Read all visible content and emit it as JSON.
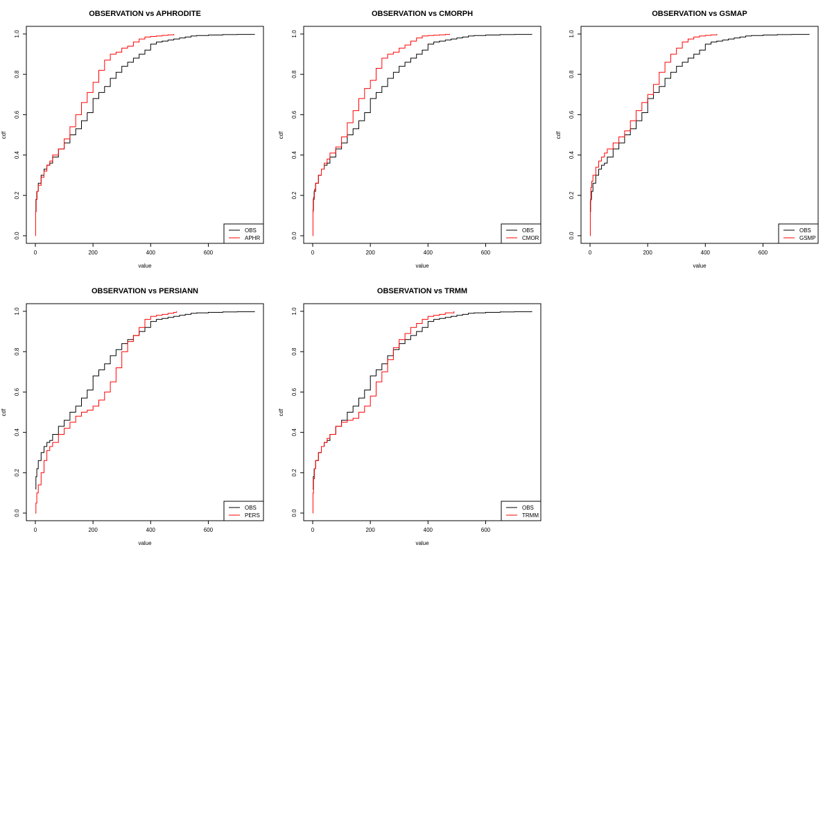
{
  "colors": {
    "obs": "#000000",
    "product": "#ff0000",
    "frame": "#000000",
    "background": "#ffffff"
  },
  "chart_data": [
    {
      "type": "line",
      "title": "OBSERVATION vs APHRODITE",
      "xlabel": "value",
      "ylabel": "cdf",
      "xlim": [
        0,
        760
      ],
      "ylim": [
        0,
        1
      ],
      "xticks": [
        "0",
        "200",
        "400",
        "600"
      ],
      "yticks": [
        "0.0",
        "0.2",
        "0.4",
        "0.6",
        "0.8",
        "1.0"
      ],
      "legend_position": "bottom-right",
      "series": [
        {
          "name": "OBS",
          "color": "#000000",
          "x": [
            0,
            2,
            5,
            10,
            20,
            30,
            40,
            50,
            60,
            80,
            100,
            120,
            140,
            160,
            180,
            200,
            220,
            240,
            260,
            280,
            300,
            320,
            340,
            360,
            380,
            400,
            420,
            440,
            460,
            480,
            500,
            520,
            540,
            560,
            600,
            650,
            700,
            760
          ],
          "y": [
            0.12,
            0.18,
            0.22,
            0.26,
            0.3,
            0.33,
            0.35,
            0.36,
            0.39,
            0.43,
            0.46,
            0.5,
            0.53,
            0.57,
            0.61,
            0.68,
            0.71,
            0.74,
            0.78,
            0.81,
            0.84,
            0.86,
            0.88,
            0.9,
            0.92,
            0.95,
            0.96,
            0.965,
            0.97,
            0.975,
            0.98,
            0.985,
            0.99,
            0.992,
            0.995,
            0.997,
            0.998,
            1.0
          ]
        },
        {
          "name": "APHR",
          "color": "#ff0000",
          "x": [
            0,
            1,
            3,
            6,
            10,
            20,
            30,
            40,
            50,
            60,
            80,
            100,
            120,
            140,
            160,
            180,
            200,
            220,
            240,
            260,
            280,
            300,
            320,
            340,
            360,
            380,
            400,
            420,
            440,
            460,
            480
          ],
          "y": [
            0.0,
            0.12,
            0.18,
            0.22,
            0.25,
            0.29,
            0.32,
            0.35,
            0.37,
            0.4,
            0.43,
            0.48,
            0.54,
            0.6,
            0.66,
            0.71,
            0.76,
            0.82,
            0.87,
            0.9,
            0.91,
            0.93,
            0.94,
            0.96,
            0.975,
            0.985,
            0.988,
            0.99,
            0.993,
            0.996,
            1.0
          ]
        }
      ]
    },
    {
      "type": "line",
      "title": "OBSERVATION vs CMORPH",
      "xlabel": "value",
      "ylabel": "cdf",
      "xlim": [
        0,
        760
      ],
      "ylim": [
        0,
        1
      ],
      "xticks": [
        "0",
        "200",
        "400",
        "600"
      ],
      "yticks": [
        "0.0",
        "0.2",
        "0.4",
        "0.6",
        "0.8",
        "1.0"
      ],
      "legend_position": "bottom-right",
      "series": [
        {
          "name": "OBS",
          "color": "#000000",
          "x": [
            0,
            2,
            5,
            10,
            20,
            30,
            40,
            50,
            60,
            80,
            100,
            120,
            140,
            160,
            180,
            200,
            220,
            240,
            260,
            280,
            300,
            320,
            340,
            360,
            380,
            400,
            420,
            440,
            460,
            480,
            500,
            520,
            540,
            560,
            600,
            650,
            700,
            760
          ],
          "y": [
            0.12,
            0.18,
            0.22,
            0.26,
            0.3,
            0.33,
            0.35,
            0.36,
            0.39,
            0.43,
            0.46,
            0.5,
            0.53,
            0.57,
            0.61,
            0.68,
            0.71,
            0.74,
            0.78,
            0.81,
            0.84,
            0.86,
            0.88,
            0.9,
            0.92,
            0.95,
            0.96,
            0.965,
            0.97,
            0.975,
            0.98,
            0.985,
            0.99,
            0.992,
            0.995,
            0.997,
            0.998,
            1.0
          ]
        },
        {
          "name": "CMOR",
          "color": "#ff0000",
          "x": [
            0,
            1,
            3,
            6,
            10,
            20,
            30,
            40,
            50,
            60,
            80,
            100,
            120,
            140,
            160,
            180,
            200,
            220,
            240,
            260,
            280,
            300,
            320,
            340,
            360,
            380,
            400,
            420,
            440,
            460,
            475
          ],
          "y": [
            0.0,
            0.13,
            0.19,
            0.23,
            0.26,
            0.3,
            0.33,
            0.36,
            0.38,
            0.41,
            0.44,
            0.49,
            0.56,
            0.62,
            0.68,
            0.73,
            0.77,
            0.83,
            0.88,
            0.9,
            0.91,
            0.93,
            0.945,
            0.965,
            0.98,
            0.99,
            0.992,
            0.994,
            0.996,
            0.998,
            1.0
          ]
        }
      ]
    },
    {
      "type": "line",
      "title": "OBSERVATION vs GSMAP",
      "xlabel": "value",
      "ylabel": "cdf",
      "xlim": [
        0,
        760
      ],
      "ylim": [
        0,
        1
      ],
      "xticks": [
        "0",
        "200",
        "400",
        "600"
      ],
      "yticks": [
        "0.0",
        "0.2",
        "0.4",
        "0.6",
        "0.8",
        "1.0"
      ],
      "legend_position": "bottom-right",
      "series": [
        {
          "name": "OBS",
          "color": "#000000",
          "x": [
            0,
            2,
            5,
            10,
            20,
            30,
            40,
            50,
            60,
            80,
            100,
            120,
            140,
            160,
            180,
            200,
            220,
            240,
            260,
            280,
            300,
            320,
            340,
            360,
            380,
            400,
            420,
            440,
            460,
            480,
            500,
            520,
            540,
            560,
            600,
            650,
            700,
            760
          ],
          "y": [
            0.12,
            0.18,
            0.22,
            0.26,
            0.3,
            0.33,
            0.35,
            0.36,
            0.39,
            0.43,
            0.46,
            0.5,
            0.53,
            0.57,
            0.61,
            0.68,
            0.71,
            0.74,
            0.78,
            0.81,
            0.84,
            0.86,
            0.88,
            0.9,
            0.92,
            0.95,
            0.96,
            0.965,
            0.97,
            0.975,
            0.98,
            0.985,
            0.99,
            0.992,
            0.995,
            0.997,
            0.998,
            1.0
          ]
        },
        {
          "name": "GSMP",
          "color": "#ff0000",
          "x": [
            0,
            1,
            3,
            6,
            10,
            20,
            30,
            40,
            50,
            60,
            80,
            100,
            120,
            140,
            160,
            180,
            200,
            220,
            240,
            260,
            280,
            300,
            320,
            340,
            360,
            380,
            400,
            420,
            440
          ],
          "y": [
            0.0,
            0.17,
            0.24,
            0.27,
            0.3,
            0.34,
            0.37,
            0.39,
            0.41,
            0.43,
            0.46,
            0.49,
            0.52,
            0.57,
            0.62,
            0.66,
            0.7,
            0.75,
            0.81,
            0.86,
            0.9,
            0.93,
            0.96,
            0.975,
            0.985,
            0.99,
            0.993,
            0.996,
            1.0
          ]
        }
      ]
    },
    {
      "type": "line",
      "title": "OBSERVATION vs PERSIANN",
      "xlabel": "value",
      "ylabel": "cdf",
      "xlim": [
        0,
        760
      ],
      "ylim": [
        0,
        1
      ],
      "xticks": [
        "0",
        "200",
        "400",
        "600"
      ],
      "yticks": [
        "0.0",
        "0.2",
        "0.4",
        "0.6",
        "0.8",
        "1.0"
      ],
      "legend_position": "bottom-right",
      "series": [
        {
          "name": "OBS",
          "color": "#000000",
          "x": [
            0,
            2,
            5,
            10,
            20,
            30,
            40,
            50,
            60,
            80,
            100,
            120,
            140,
            160,
            180,
            200,
            220,
            240,
            260,
            280,
            300,
            320,
            340,
            360,
            380,
            400,
            420,
            440,
            460,
            480,
            500,
            520,
            540,
            560,
            600,
            650,
            700,
            760
          ],
          "y": [
            0.12,
            0.18,
            0.22,
            0.26,
            0.3,
            0.33,
            0.35,
            0.36,
            0.39,
            0.43,
            0.46,
            0.5,
            0.53,
            0.57,
            0.61,
            0.68,
            0.71,
            0.74,
            0.78,
            0.81,
            0.84,
            0.86,
            0.88,
            0.9,
            0.92,
            0.95,
            0.96,
            0.965,
            0.97,
            0.975,
            0.98,
            0.985,
            0.99,
            0.992,
            0.995,
            0.997,
            0.998,
            1.0
          ]
        },
        {
          "name": "PERS",
          "color": "#ff0000",
          "x": [
            0,
            2,
            5,
            10,
            20,
            30,
            40,
            50,
            60,
            80,
            100,
            120,
            140,
            160,
            180,
            200,
            220,
            240,
            260,
            280,
            300,
            320,
            340,
            360,
            380,
            400,
            420,
            440,
            460,
            480,
            490
          ],
          "y": [
            0.0,
            0.05,
            0.1,
            0.14,
            0.2,
            0.26,
            0.31,
            0.33,
            0.35,
            0.39,
            0.42,
            0.45,
            0.48,
            0.5,
            0.51,
            0.53,
            0.56,
            0.6,
            0.65,
            0.72,
            0.8,
            0.85,
            0.88,
            0.92,
            0.96,
            0.975,
            0.98,
            0.985,
            0.99,
            0.995,
            1.0
          ]
        }
      ]
    },
    {
      "type": "line",
      "title": "OBSERVATION vs TRMM",
      "xlabel": "value",
      "ylabel": "cdf",
      "xlim": [
        0,
        760
      ],
      "ylim": [
        0,
        1
      ],
      "xticks": [
        "0",
        "200",
        "400",
        "600"
      ],
      "yticks": [
        "0.0",
        "0.2",
        "0.4",
        "0.6",
        "0.8",
        "1.0"
      ],
      "legend_position": "bottom-right",
      "series": [
        {
          "name": "OBS",
          "color": "#000000",
          "x": [
            0,
            2,
            5,
            10,
            20,
            30,
            40,
            50,
            60,
            80,
            100,
            120,
            140,
            160,
            180,
            200,
            220,
            240,
            260,
            280,
            300,
            320,
            340,
            360,
            380,
            400,
            420,
            440,
            460,
            480,
            500,
            520,
            540,
            560,
            600,
            650,
            700,
            760
          ],
          "y": [
            0.12,
            0.18,
            0.22,
            0.26,
            0.3,
            0.33,
            0.35,
            0.36,
            0.39,
            0.43,
            0.46,
            0.5,
            0.53,
            0.57,
            0.61,
            0.68,
            0.71,
            0.74,
            0.78,
            0.81,
            0.84,
            0.86,
            0.88,
            0.9,
            0.92,
            0.95,
            0.96,
            0.965,
            0.97,
            0.975,
            0.98,
            0.985,
            0.99,
            0.992,
            0.995,
            0.997,
            0.998,
            1.0
          ]
        },
        {
          "name": "TRMM",
          "color": "#ff0000",
          "x": [
            0,
            1,
            3,
            6,
            10,
            20,
            30,
            40,
            50,
            60,
            80,
            100,
            120,
            140,
            160,
            180,
            200,
            220,
            240,
            260,
            280,
            300,
            320,
            340,
            360,
            380,
            400,
            420,
            440,
            460,
            490
          ],
          "y": [
            0.0,
            0.1,
            0.17,
            0.22,
            0.26,
            0.3,
            0.33,
            0.35,
            0.37,
            0.39,
            0.43,
            0.45,
            0.46,
            0.47,
            0.5,
            0.53,
            0.58,
            0.65,
            0.7,
            0.76,
            0.82,
            0.86,
            0.89,
            0.92,
            0.94,
            0.96,
            0.975,
            0.98,
            0.985,
            0.992,
            1.0
          ]
        }
      ]
    }
  ]
}
